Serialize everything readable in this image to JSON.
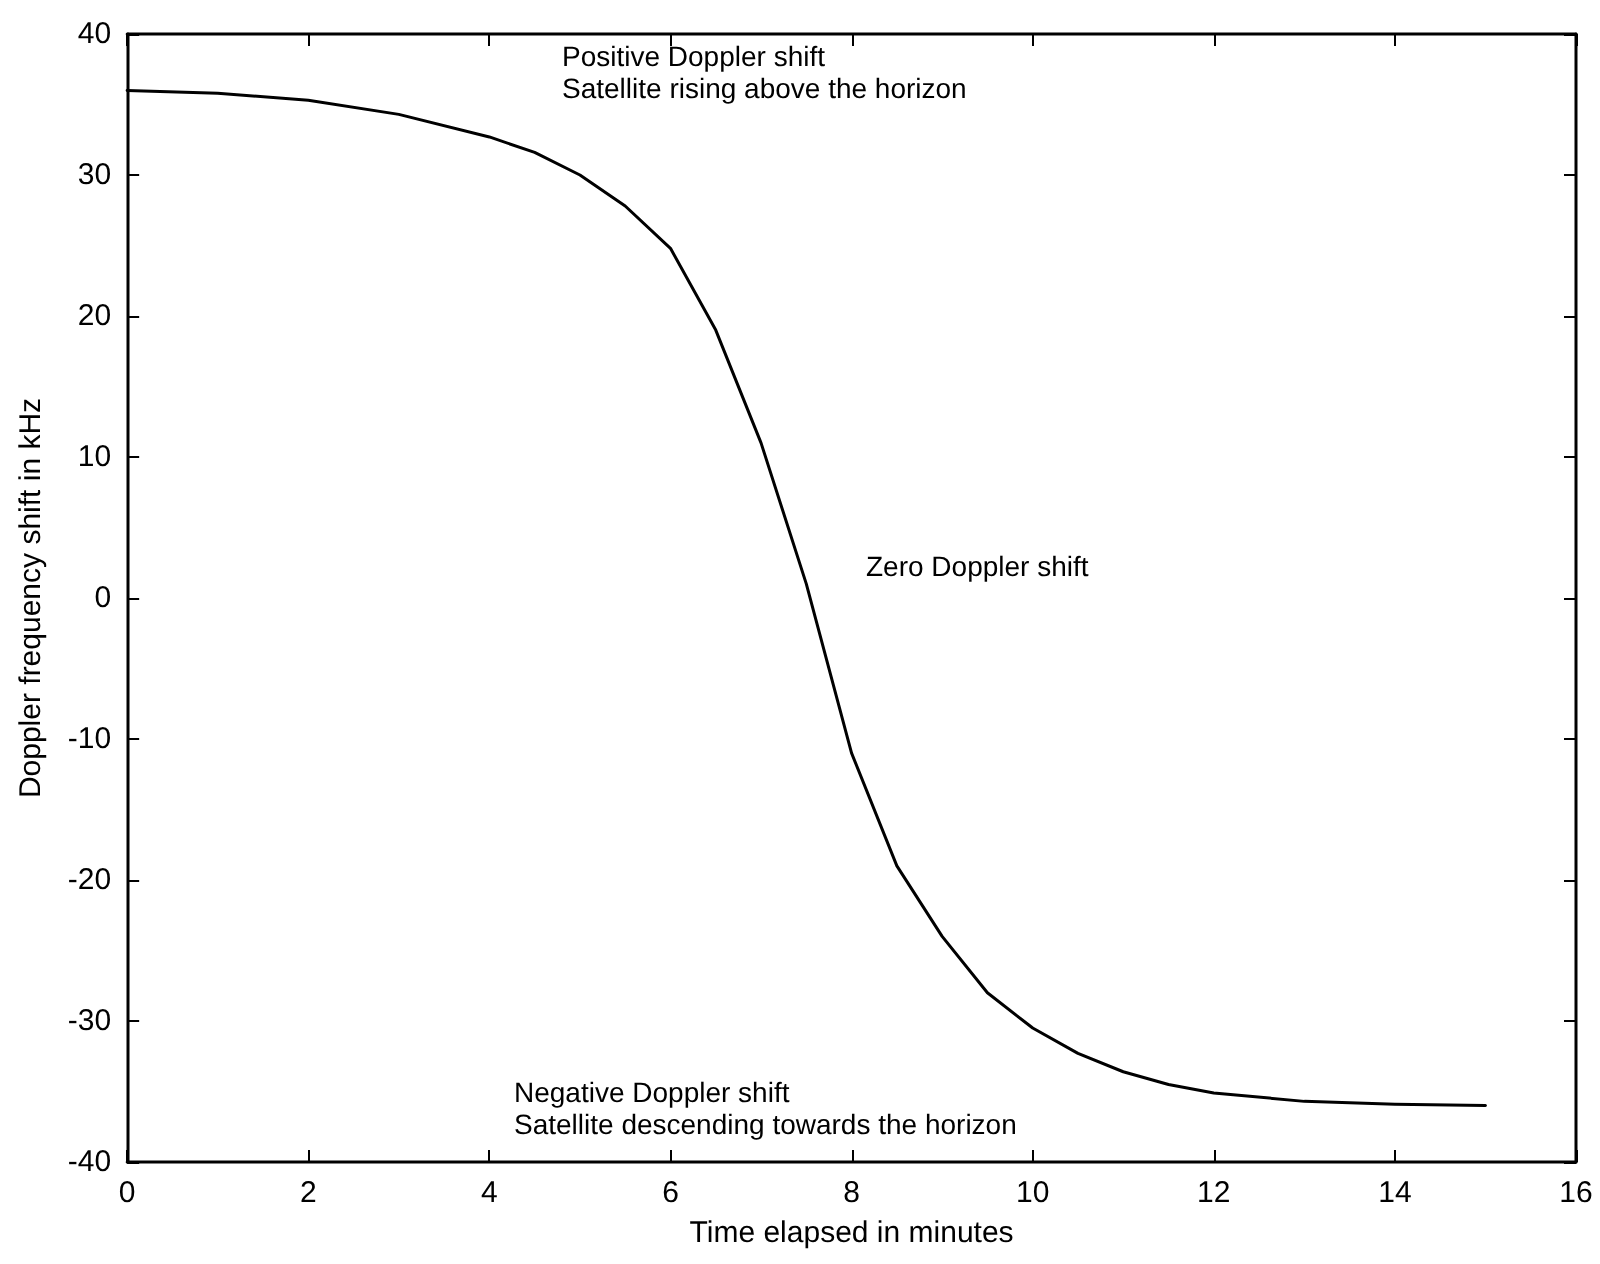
{
  "chart_data": {
    "type": "line",
    "xlabel": "Time elapsed in minutes",
    "ylabel": "Doppler frequency shift in kHz",
    "x": [
      0,
      1,
      2,
      3,
      4,
      4.5,
      5,
      5.5,
      6,
      6.5,
      7,
      7.5,
      8,
      8.5,
      9,
      9.5,
      10,
      10.5,
      11,
      11.5,
      12,
      13,
      14,
      15
    ],
    "series": [
      {
        "color": "#000000",
        "values": [
          36,
          35.8,
          35.3,
          34.3,
          32.7,
          31.6,
          30,
          27.8,
          24.8,
          19,
          11,
          1,
          -11,
          -19,
          -24,
          -28,
          -30.5,
          -32.3,
          -33.6,
          -34.5,
          -35.1,
          -35.7,
          -35.9,
          -36
        ]
      }
    ],
    "xlim": [
      0,
      16
    ],
    "xticks": [
      0,
      2,
      4,
      6,
      8,
      10,
      12,
      14,
      16
    ],
    "ylim": [
      -40,
      40
    ],
    "yticks": [
      -40,
      -30,
      -20,
      -10,
      0,
      10,
      20,
      30,
      40
    ],
    "grid": false,
    "marker": "none",
    "line_style": "solid",
    "annotations": [
      "Positive Doppler shift\nSatellite rising above the horizon",
      "Zero Doppler shift",
      "Negative Doppler shift\nSatellite descending towards the horizon"
    ]
  }
}
